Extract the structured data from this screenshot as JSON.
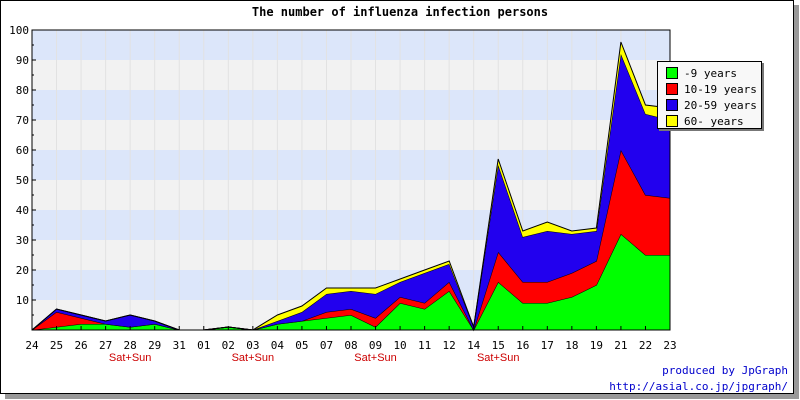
{
  "chart_data": {
    "type": "area",
    "stacked": true,
    "title": "The number of influenza infection persons",
    "categories": [
      "24",
      "25",
      "26",
      "27",
      "28",
      "29",
      "31",
      "01",
      "02",
      "03",
      "04",
      "05",
      "07",
      "08",
      "09",
      "10",
      "11",
      "12",
      "14",
      "15",
      "16",
      "17",
      "18",
      "19",
      "21",
      "22",
      "23"
    ],
    "weekend_labels": [
      {
        "category": "28",
        "text": "Sat+Sun"
      },
      {
        "category": "03",
        "text": "Sat+Sun"
      },
      {
        "category": "09",
        "text": "Sat+Sun"
      },
      {
        "category": "15",
        "text": "Sat+Sun"
      }
    ],
    "ylim": [
      0,
      100
    ],
    "yticks": [
      10,
      20,
      30,
      40,
      50,
      60,
      70,
      80,
      90,
      100
    ],
    "legend_position": "top-right",
    "series": [
      {
        "name": "-9 years",
        "color": "#00ff00",
        "values": [
          0,
          1,
          2,
          2,
          1,
          2,
          0,
          0,
          1,
          0,
          2,
          3,
          4,
          5,
          1,
          9,
          7,
          13,
          0,
          16,
          9,
          9,
          11,
          15,
          32,
          25,
          25
        ]
      },
      {
        "name": "10-19 years",
        "color": "#ff0000",
        "values": [
          0,
          5,
          2,
          0,
          0,
          0,
          0,
          0,
          0,
          0,
          0,
          0,
          2,
          2,
          3,
          2,
          2,
          3,
          0,
          10,
          7,
          7,
          8,
          8,
          28,
          20,
          19
        ]
      },
      {
        "name": "20-59 years",
        "color": "#2200ee",
        "values": [
          0,
          1,
          1,
          1,
          4,
          1,
          0,
          0,
          0,
          0,
          1,
          3,
          6,
          6,
          8,
          5,
          10,
          6,
          1,
          29,
          15,
          17,
          13,
          10,
          32,
          27,
          26
        ]
      },
      {
        "name": "60- years",
        "color": "#ffff00",
        "values": [
          0,
          0,
          0,
          0,
          0,
          0,
          0,
          0,
          0,
          0,
          2,
          2,
          2,
          1,
          2,
          1,
          1,
          1,
          0,
          2,
          2,
          3,
          1,
          1,
          4,
          3,
          4
        ]
      }
    ]
  },
  "credits": {
    "line1": "produced by JpGraph",
    "line2": "http://asial.co.jp/jpgraph/"
  }
}
